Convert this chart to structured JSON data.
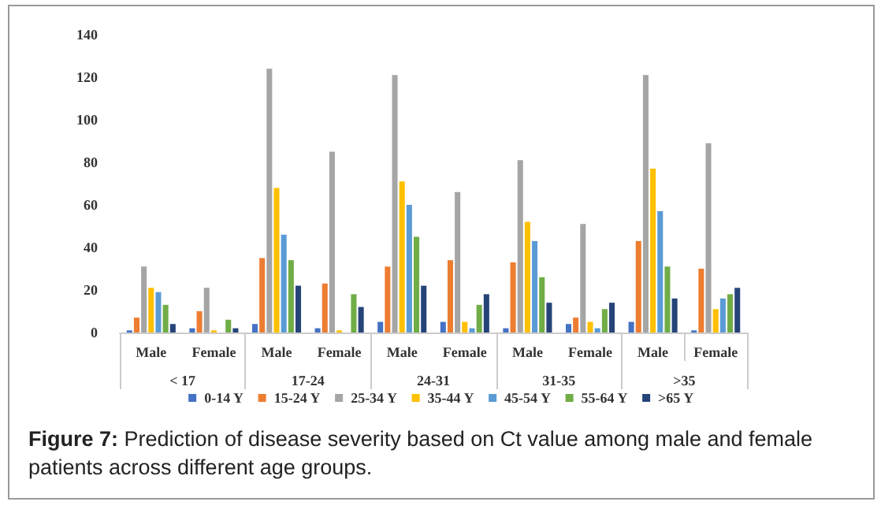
{
  "chart_data": {
    "type": "bar",
    "categories": [
      "Male",
      "Female",
      "Male",
      "Female",
      "Male",
      "Female",
      "Male",
      "Female",
      "Male",
      "Female"
    ],
    "series": [
      {
        "name": "0-14 Y",
        "color": "#4472c4",
        "values": [
          1,
          2,
          4,
          2,
          5,
          5,
          2,
          4,
          5,
          1
        ]
      },
      {
        "name": "15-24 Y",
        "color": "#ed7d31",
        "values": [
          7,
          10,
          35,
          23,
          31,
          34,
          33,
          7,
          43,
          30
        ]
      },
      {
        "name": "25-34 Y",
        "color": "#a5a5a5",
        "values": [
          31,
          21,
          124,
          85,
          121,
          66,
          81,
          51,
          121,
          89
        ]
      },
      {
        "name": "35-44 Y",
        "color": "#ffc000",
        "values": [
          21,
          1,
          68,
          1,
          71,
          5,
          52,
          5,
          77,
          11
        ]
      },
      {
        "name": "45-54 Y",
        "color": "#5b9bd5",
        "values": [
          19,
          0,
          46,
          0,
          60,
          2,
          43,
          2,
          57,
          16
        ]
      },
      {
        "name": "55-64 Y",
        "color": "#70ad47",
        "values": [
          13,
          6,
          34,
          18,
          45,
          13,
          26,
          11,
          31,
          18
        ]
      },
      {
        "name": ">65 Y",
        "color": "#264478",
        "values": [
          4,
          2,
          22,
          12,
          22,
          18,
          14,
          14,
          16,
          21
        ]
      }
    ],
    "ylim": [
      0,
      140
    ],
    "yticks": [
      0,
      20,
      40,
      60,
      80,
      100,
      120,
      140
    ],
    "grid": false,
    "legend": "bottom",
    "annotations": [
      "< 17",
      "17-24",
      "24-31",
      "31-35",
      ">35",
      "Figure 7:",
      " Prediction of disease severity based on Ct value among male and female patients across different age groups."
    ]
  }
}
